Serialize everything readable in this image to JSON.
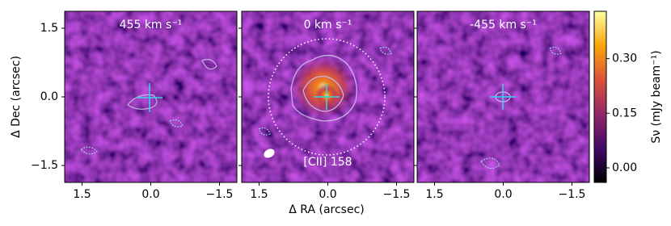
{
  "chart_data": {
    "type": "image",
    "xlabel": "Δ RA (arcsec)",
    "ylabel": "Δ Dec (arcsec)",
    "xlim": [
      1.88,
      -1.88
    ],
    "ylim": [
      -1.87,
      1.87
    ],
    "xticks": [
      1.5,
      {
        "value": 0,
        "label": "0.0"
      },
      {
        "value": -1.5,
        "label": "−1.5"
      }
    ],
    "yticks": [
      1.5,
      {
        "value": 0,
        "label": "0.0"
      },
      {
        "value": -1.5,
        "label": "−1.5"
      }
    ],
    "panels": [
      {
        "label": "455 km s⁻¹"
      },
      {
        "label": "0 km s⁻¹",
        "annotation": "[CII] 158"
      },
      {
        "label": "-455 km s⁻¹"
      }
    ],
    "colorbar": {
      "label": "Sν (mJy beam⁻¹)",
      "lim": [
        -0.04,
        0.43
      ],
      "ticks": [
        {
          "value": 0,
          "label": "0.00"
        },
        {
          "value": 0.15,
          "label": "0.15"
        },
        {
          "value": 0.3,
          "label": "0.30"
        }
      ]
    }
  }
}
